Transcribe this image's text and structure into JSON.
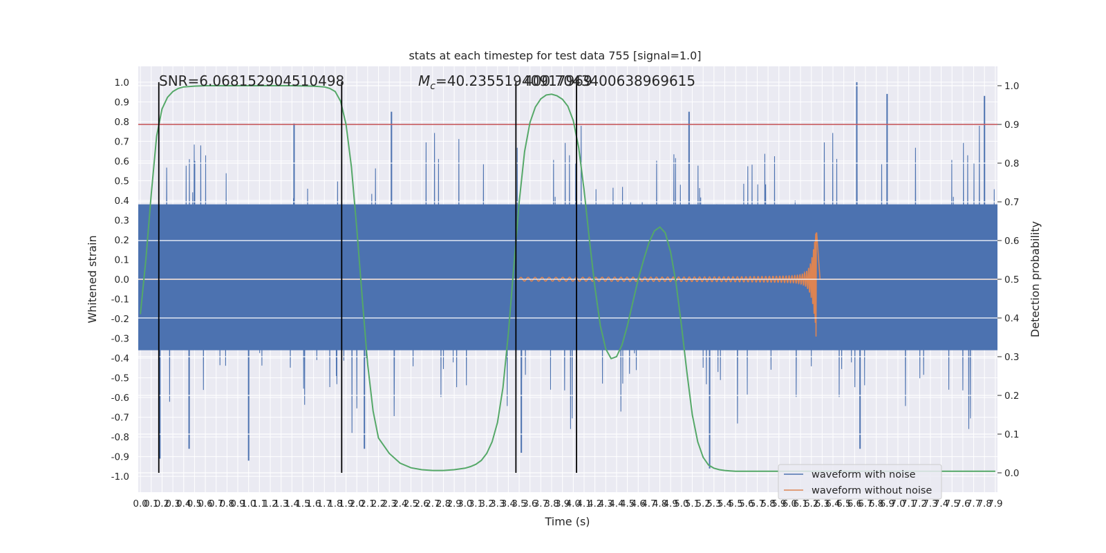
{
  "chart_data": {
    "type": "line",
    "title": "stats at each timestep for test data 755 [signal=1.0]",
    "xlabel": "Time (s)",
    "ylabel": "Whitened strain",
    "ylabel_right": "Detection probability",
    "xlim": [
      -0.02,
      7.92
    ],
    "ylim": [
      -1.08,
      1.08
    ],
    "ylim_right": [
      -0.05,
      1.05
    ],
    "grid": true,
    "legend_position": "lower-right",
    "x_ticks": [
      "0.0",
      "0.1",
      "0.2",
      "0.3",
      "0.4",
      "0.5",
      "0.6",
      "0.7",
      "0.8",
      "0.9",
      "1.0",
      "1.1",
      "1.2",
      "1.3",
      "1.4",
      "1.5",
      "1.6",
      "1.7",
      "1.8",
      "1.9",
      "2.0",
      "2.1",
      "2.2",
      "2.3",
      "2.4",
      "2.5",
      "2.6",
      "2.7",
      "2.8",
      "2.9",
      "3.0",
      "3.1",
      "3.2",
      "3.3",
      "3.4",
      "3.5",
      "3.6",
      "3.7",
      "3.8",
      "3.9",
      "4.0",
      "4.1",
      "4.2",
      "4.3",
      "4.4",
      "4.5",
      "4.6",
      "4.7",
      "4.8",
      "4.9",
      "5.0",
      "5.1",
      "5.2",
      "5.3",
      "5.4",
      "5.5",
      "5.6",
      "5.7",
      "5.8",
      "5.9",
      "6.0",
      "6.1",
      "6.2",
      "6.3",
      "6.4",
      "6.5",
      "6.6",
      "6.7",
      "6.8",
      "6.9",
      "7.0",
      "7.1",
      "7.2",
      "7.3",
      "7.4",
      "7.5",
      "7.6",
      "7.7",
      "7.8",
      "7.9"
    ],
    "y_ticks": [
      "-1.0",
      "-0.9",
      "-0.8",
      "-0.7",
      "-0.6",
      "-0.5",
      "-0.4",
      "-0.3",
      "-0.2",
      "-0.1",
      "0.0",
      "0.1",
      "0.2",
      "0.3",
      "0.4",
      "0.5",
      "0.6",
      "0.7",
      "0.8",
      "0.9",
      "1.0"
    ],
    "y_ticks_right": [
      "0.0",
      "0.1",
      "0.2",
      "0.3",
      "0.4",
      "0.5",
      "0.6",
      "0.7",
      "0.8",
      "0.9",
      "1.0"
    ],
    "threshold_right": 0.9,
    "event_markers_x": [
      0.17,
      1.86,
      3.47,
      4.03
    ],
    "annotations": {
      "snr": "SNR=6.068152904510498",
      "mc_symbol": "M",
      "mc_sub": "c",
      "mc_value": "=40.23551940917969",
      "mc_overlap": "400.7043400638969615"
    },
    "series": [
      {
        "name": "waveform with noise",
        "color": "#4c72b0",
        "axis": "left",
        "envelope": {
          "hi": 0.38,
          "lo": -0.36,
          "sample_rate": 400
        },
        "peaks": [
          {
            "x": 0.5,
            "y": 0.6
          },
          {
            "x": 1.42,
            "y": 0.79
          },
          {
            "x": 2.32,
            "y": 0.85
          },
          {
            "x": 5.07,
            "y": 0.85
          },
          {
            "x": 6.62,
            "y": 1.0
          },
          {
            "x": 6.9,
            "y": 0.94
          },
          {
            "x": 7.8,
            "y": 0.93
          },
          {
            "x": 0.18,
            "y": -0.91
          },
          {
            "x": 0.45,
            "y": -0.86
          },
          {
            "x": 1.0,
            "y": -0.92
          },
          {
            "x": 2.07,
            "y": -0.86
          },
          {
            "x": 3.52,
            "y": -0.88
          },
          {
            "x": 5.26,
            "y": -0.96
          },
          {
            "x": 6.65,
            "y": -0.86
          }
        ]
      },
      {
        "name": "waveform without noise",
        "color": "#dd8452",
        "axis": "left",
        "chirp": {
          "start": 3.5,
          "merger": 6.25,
          "peak": 0.36,
          "trough": -0.34,
          "ringdown_end": 6.28
        }
      },
      {
        "name": "detection probability",
        "color": "#55a868",
        "axis": "right",
        "x": [
          0.0,
          0.05,
          0.1,
          0.15,
          0.2,
          0.25,
          0.3,
          0.35,
          0.4,
          0.5,
          0.6,
          0.8,
          1.0,
          1.2,
          1.4,
          1.6,
          1.7,
          1.75,
          1.8,
          1.85,
          1.9,
          1.95,
          2.0,
          2.05,
          2.1,
          2.15,
          2.2,
          2.3,
          2.4,
          2.5,
          2.6,
          2.7,
          2.8,
          2.9,
          3.0,
          3.05,
          3.1,
          3.15,
          3.2,
          3.25,
          3.3,
          3.35,
          3.4,
          3.45,
          3.5,
          3.55,
          3.6,
          3.65,
          3.7,
          3.75,
          3.8,
          3.85,
          3.9,
          3.95,
          4.0,
          4.05,
          4.1,
          4.15,
          4.2,
          4.25,
          4.3,
          4.35,
          4.4,
          4.45,
          4.5,
          4.55,
          4.6,
          4.65,
          4.7,
          4.75,
          4.8,
          4.85,
          4.9,
          4.95,
          5.0,
          5.05,
          5.1,
          5.15,
          5.2,
          5.25,
          5.3,
          5.35,
          5.4,
          5.45,
          5.5,
          5.55,
          5.6,
          5.7,
          5.8,
          6.0,
          6.5,
          7.0,
          7.5,
          7.9
        ],
        "y": [
          0.41,
          0.55,
          0.72,
          0.87,
          0.94,
          0.97,
          0.985,
          0.993,
          0.997,
          0.999,
          1.0,
          1.0,
          1.0,
          1.0,
          1.0,
          0.999,
          0.997,
          0.993,
          0.985,
          0.96,
          0.9,
          0.79,
          0.63,
          0.45,
          0.28,
          0.16,
          0.09,
          0.05,
          0.025,
          0.013,
          0.008,
          0.006,
          0.006,
          0.008,
          0.012,
          0.016,
          0.022,
          0.032,
          0.05,
          0.08,
          0.13,
          0.22,
          0.36,
          0.53,
          0.7,
          0.83,
          0.905,
          0.945,
          0.966,
          0.976,
          0.978,
          0.974,
          0.965,
          0.947,
          0.91,
          0.84,
          0.73,
          0.6,
          0.48,
          0.38,
          0.32,
          0.295,
          0.3,
          0.33,
          0.38,
          0.44,
          0.5,
          0.55,
          0.595,
          0.625,
          0.635,
          0.62,
          0.57,
          0.49,
          0.38,
          0.26,
          0.15,
          0.08,
          0.04,
          0.02,
          0.012,
          0.008,
          0.006,
          0.005,
          0.004,
          0.004,
          0.004,
          0.004,
          0.004,
          0.004,
          0.004,
          0.004,
          0.004,
          0.004
        ]
      }
    ]
  }
}
